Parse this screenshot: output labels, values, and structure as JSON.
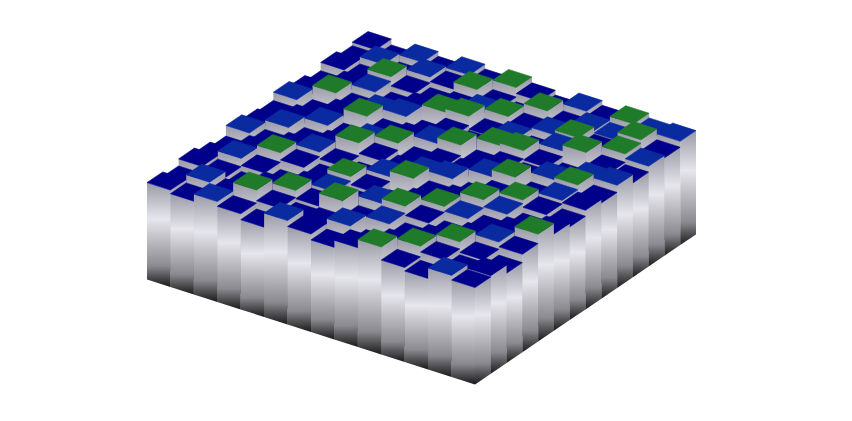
{
  "chart_data": {
    "type": "surface",
    "tick_labels": false,
    "zlim": [
      0,
      10
    ],
    "z": [
      [
        8.2,
        7.9,
        8.5,
        8.1,
        7.6,
        8.8,
        8.3,
        7.8,
        8.4,
        9.1,
        8.0,
        7.7,
        8.6,
        8.2
      ],
      [
        7.8,
        8.6,
        8.0,
        9.2,
        8.3,
        7.9,
        8.1,
        8.7,
        7.5,
        8.2,
        8.9,
        8.4,
        7.9,
        8.3
      ],
      [
        8.4,
        8.1,
        7.7,
        8.3,
        8.9,
        8.2,
        9.3,
        8.0,
        8.6,
        7.8,
        8.3,
        9.0,
        8.1,
        7.6
      ],
      [
        8.0,
        8.8,
        8.2,
        7.6,
        8.1,
        8.5,
        7.9,
        8.8,
        9.2,
        8.4,
        7.7,
        8.2,
        8.7,
        8.3
      ],
      [
        7.6,
        8.3,
        9.0,
        8.4,
        7.8,
        8.9,
        8.2,
        7.5,
        8.3,
        8.9,
        8.5,
        7.9,
        8.4,
        9.1
      ],
      [
        8.5,
        7.9,
        8.3,
        8.8,
        8.2,
        7.7,
        8.6,
        9.1,
        8.0,
        8.3,
        9.2,
        8.6,
        7.8,
        8.2
      ],
      [
        8.1,
        8.7,
        7.8,
        8.2,
        9.3,
        8.4,
        8.0,
        8.5,
        8.8,
        7.6,
        8.4,
        8.9,
        8.3,
        7.9
      ],
      [
        7.9,
        8.2,
        8.6,
        7.9,
        8.5,
        9.0,
        7.8,
        8.3,
        8.1,
        8.7,
        9.3,
        8.0,
        8.6,
        8.4
      ],
      [
        8.6,
        7.7,
        8.4,
        9.1,
        8.0,
        8.3,
        8.7,
        9.2,
        7.9,
        8.4,
        8.1,
        8.8,
        9.0,
        8.1
      ],
      [
        8.2,
        8.9,
        8.0,
        8.5,
        8.8,
        7.6,
        8.4,
        8.0,
        8.9,
        9.1,
        8.3,
        7.8,
        8.5,
        8.7
      ],
      [
        7.7,
        8.3,
        8.7,
        7.8,
        8.4,
        8.9,
        9.2,
        8.1,
        8.5,
        7.9,
        8.8,
        9.3,
        8.2,
        8.0
      ],
      [
        8.4,
        8.0,
        9.1,
        8.3,
        7.9,
        8.2,
        8.6,
        8.9,
        8.3,
        8.6,
        9.0,
        8.4,
        8.9,
        8.5
      ],
      [
        8.0,
        8.6,
        7.9,
        8.8,
        8.4,
        9.0,
        8.1,
        7.7,
        9.1,
        8.2,
        8.7,
        8.5,
        9.2,
        8.3
      ],
      [
        8.3,
        7.8,
        8.5,
        8.1,
        8.7,
        8.3,
        8.9,
        8.4,
        8.0,
        8.8,
        8.4,
        9.0,
        8.6,
        8.8
      ]
    ]
  }
}
